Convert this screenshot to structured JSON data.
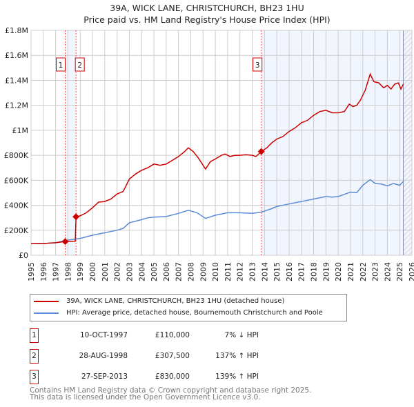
{
  "chart_data": {
    "type": "line",
    "title": "39A, WICK LANE, CHRISTCHURCH, BH23 1HU",
    "subtitle": "Price paid vs. HM Land Registry's House Price Index (HPI)",
    "xlim": [
      1995,
      2026
    ],
    "ylim": [
      0,
      1800000
    ],
    "y_ticks": [
      {
        "v": 0,
        "label": "£0"
      },
      {
        "v": 200000,
        "label": "£200K"
      },
      {
        "v": 400000,
        "label": "£400K"
      },
      {
        "v": 600000,
        "label": "£600K"
      },
      {
        "v": 800000,
        "label": "£800K"
      },
      {
        "v": 1000000,
        "label": "£1M"
      },
      {
        "v": 1200000,
        "label": "£1.2M"
      },
      {
        "v": 1400000,
        "label": "£1.4M"
      },
      {
        "v": 1600000,
        "label": "£1.6M"
      },
      {
        "v": 1800000,
        "label": "£1.8M"
      }
    ],
    "x_ticks": [
      "1995",
      "1996",
      "1997",
      "1998",
      "1999",
      "2000",
      "2001",
      "2002",
      "2003",
      "2004",
      "2005",
      "2006",
      "2007",
      "2008",
      "2009",
      "2010",
      "2011",
      "2012",
      "2013",
      "2014",
      "2015",
      "2016",
      "2017",
      "2018",
      "2019",
      "2020",
      "2021",
      "2022",
      "2023",
      "2024",
      "2025",
      "2026"
    ],
    "grid": true,
    "series": [
      {
        "name": "39A, WICK LANE, CHRISTCHURCH, BH23 1HU (detached house)",
        "color": "#cc0000",
        "x": [
          1995,
          1996,
          1996.5,
          1997,
          1997.78,
          1998.6,
          1998.66,
          1999,
          1999.5,
          2000,
          2000.5,
          2001,
          2001.5,
          2002,
          2002.5,
          2003,
          2003.5,
          2004,
          2004.5,
          2005,
          2005.5,
          2006,
          2006.5,
          2007,
          2007.5,
          2007.8,
          2008.2,
          2008.6,
          2009.2,
          2009.6,
          2010,
          2010.5,
          2010.8,
          2011.2,
          2011.6,
          2012,
          2012.5,
          2013,
          2013.3,
          2013.74,
          2014.2,
          2014.6,
          2015,
          2015.5,
          2016,
          2016.5,
          2017,
          2017.5,
          2018,
          2018.5,
          2019,
          2019.5,
          2020,
          2020.5,
          2020.9,
          2021.2,
          2021.5,
          2021.8,
          2022.2,
          2022.6,
          2022.9,
          2023.3,
          2023.7,
          2024,
          2024.3,
          2024.6,
          2024.9,
          2025.1,
          2025.3
        ],
        "y": [
          95000,
          93000,
          97000,
          100000,
          110000,
          112000,
          307500,
          315000,
          340000,
          380000,
          425000,
          430000,
          450000,
          490000,
          510000,
          610000,
          650000,
          680000,
          700000,
          730000,
          720000,
          730000,
          760000,
          790000,
          830000,
          860000,
          830000,
          780000,
          690000,
          750000,
          770000,
          800000,
          810000,
          790000,
          800000,
          800000,
          805000,
          800000,
          790000,
          830000,
          860000,
          900000,
          930000,
          950000,
          990000,
          1020000,
          1060000,
          1080000,
          1120000,
          1150000,
          1160000,
          1140000,
          1140000,
          1150000,
          1210000,
          1190000,
          1200000,
          1240000,
          1320000,
          1450000,
          1390000,
          1380000,
          1340000,
          1360000,
          1330000,
          1370000,
          1380000,
          1330000,
          1370000
        ]
      },
      {
        "name": "HPI: Average price, detached house, Bournemouth Christchurch and Poole",
        "color": "#5b8bd4",
        "x": [
          1995,
          1996,
          1997,
          1997.78,
          1998.66,
          1999,
          2000,
          2001,
          2002,
          2002.5,
          2003,
          2004,
          2004.5,
          2005,
          2006,
          2007,
          2007.8,
          2008.5,
          2009.2,
          2010,
          2011,
          2012,
          2013,
          2013.74,
          2014.5,
          2015,
          2016,
          2017,
          2018,
          2019,
          2019.5,
          2020,
          2021,
          2021.5,
          2022,
          2022.6,
          2023,
          2023.5,
          2024,
          2024.5,
          2025,
          2025.3
        ],
        "y": [
          95000,
          94000,
          100000,
          118000,
          130000,
          135000,
          160000,
          180000,
          200000,
          215000,
          260000,
          285000,
          300000,
          305000,
          310000,
          335000,
          360000,
          340000,
          295000,
          320000,
          340000,
          340000,
          335000,
          345000,
          370000,
          390000,
          410000,
          430000,
          450000,
          470000,
          465000,
          470000,
          505000,
          500000,
          560000,
          605000,
          575000,
          570000,
          555000,
          575000,
          560000,
          590000
        ]
      }
    ],
    "sales": [
      {
        "n": "1",
        "x": 1997.78,
        "y": 110000
      },
      {
        "n": "2",
        "x": 1998.66,
        "y": 307500
      },
      {
        "n": "3",
        "x": 2013.74,
        "y": 830000
      }
    ],
    "shaded": [
      [
        1997.78,
        1998.66
      ],
      [
        2013.74,
        2026
      ]
    ],
    "hatched_from": 2025.3
  },
  "legend": {
    "red": "39A, WICK LANE, CHRISTCHURCH, BH23 1HU (detached house)",
    "blue": "HPI: Average price, detached house, Bournemouth Christchurch and Poole"
  },
  "table": [
    {
      "n": "1",
      "date": "10-OCT-1997",
      "price": "£110,000",
      "hpi": "7% ↓ HPI"
    },
    {
      "n": "2",
      "date": "28-AUG-1998",
      "price": "£307,500",
      "hpi": "137% ↑ HPI"
    },
    {
      "n": "3",
      "date": "27-SEP-2013",
      "price": "£830,000",
      "hpi": "139% ↑ HPI"
    }
  ],
  "footer": [
    "Contains HM Land Registry data © Crown copyright and database right 2025.",
    "This data is licensed under the Open Government Licence v3.0."
  ]
}
